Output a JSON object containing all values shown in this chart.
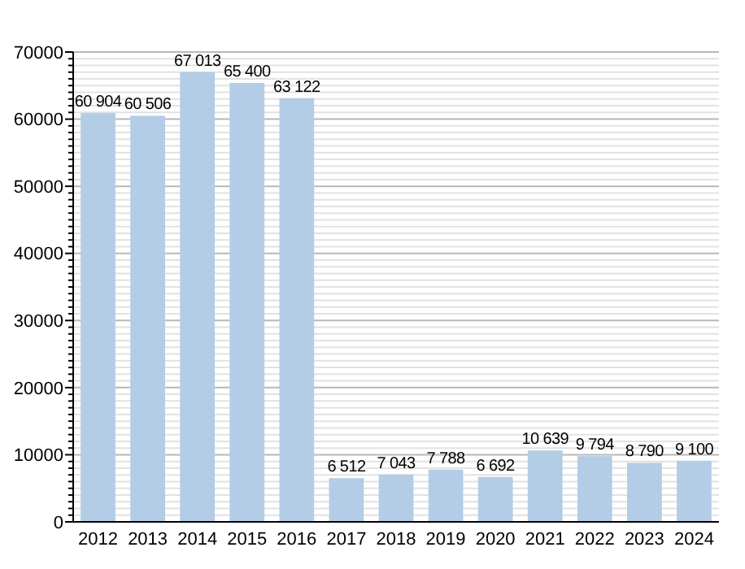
{
  "chart_data": {
    "type": "bar",
    "categories": [
      "2012",
      "2013",
      "2014",
      "2015",
      "2016",
      "2017",
      "2018",
      "2019",
      "2020",
      "2021",
      "2022",
      "2023",
      "2024"
    ],
    "values": [
      60904,
      60506,
      67013,
      65400,
      63122,
      6512,
      7043,
      7788,
      6692,
      10639,
      9794,
      8790,
      9100
    ],
    "value_labels": [
      "60 904",
      "60 506",
      "67 013",
      "65 400",
      "63 122",
      "6 512",
      "7 043",
      "7 788",
      "6 692",
      "10 639",
      "9 794",
      "8 790",
      "9 100"
    ],
    "color": "#b3cde6",
    "ylim": [
      0,
      70000
    ],
    "yticks": [
      0,
      {
        "value": 1000,
        "label": null
      },
      {
        "value": 2000,
        "label": null
      },
      {
        "value": 3000,
        "label": null
      },
      {
        "value": 4000,
        "label": null
      },
      {
        "value": 5000,
        "label": null
      },
      {
        "value": 6000,
        "label": null
      },
      {
        "value": 7000,
        "label": null
      },
      {
        "value": 8000,
        "label": null
      },
      {
        "value": 9000,
        "label": null
      },
      10000,
      {
        "value": 11000,
        "label": null
      },
      {
        "value": 12000,
        "label": null
      },
      {
        "value": 13000,
        "label": null
      },
      {
        "value": 14000,
        "label": null
      },
      {
        "value": 15000,
        "label": null
      },
      {
        "value": 16000,
        "label": null
      },
      {
        "value": 17000,
        "label": null
      },
      {
        "value": 18000,
        "label": null
      },
      {
        "value": 19000,
        "label": null
      },
      20000,
      {
        "value": 21000,
        "label": null
      },
      {
        "value": 22000,
        "label": null
      },
      {
        "value": 23000,
        "label": null
      },
      {
        "value": 24000,
        "label": null
      },
      {
        "value": 25000,
        "label": null
      },
      {
        "value": 26000,
        "label": null
      },
      {
        "value": 27000,
        "label": null
      },
      {
        "value": 28000,
        "label": null
      },
      {
        "value": 29000,
        "label": null
      },
      30000,
      {
        "value": 31000,
        "label": null
      },
      {
        "value": 32000,
        "label": null
      },
      {
        "value": 33000,
        "label": null
      },
      {
        "value": 34000,
        "label": null
      },
      {
        "value": 35000,
        "label": null
      },
      {
        "value": 36000,
        "label": null
      },
      {
        "value": 37000,
        "label": null
      },
      {
        "value": 38000,
        "label": null
      },
      {
        "value": 39000,
        "label": null
      },
      40000,
      {
        "value": 41000,
        "label": null
      },
      {
        "value": 42000,
        "label": null
      },
      {
        "value": 43000,
        "label": null
      },
      {
        "value": 44000,
        "label": null
      },
      {
        "value": 45000,
        "label": null
      },
      {
        "value": 46000,
        "label": null
      },
      {
        "value": 47000,
        "label": null
      },
      {
        "value": 48000,
        "label": null
      },
      {
        "value": 49000,
        "label": null
      },
      50000,
      {
        "value": 51000,
        "label": null
      },
      {
        "value": 52000,
        "label": null
      },
      {
        "value": 53000,
        "label": null
      },
      {
        "value": 54000,
        "label": null
      },
      {
        "value": 55000,
        "label": null
      },
      {
        "value": 56000,
        "label": null
      },
      {
        "value": 57000,
        "label": null
      },
      {
        "value": 58000,
        "label": null
      },
      {
        "value": 59000,
        "label": null
      },
      60000,
      {
        "value": 61000,
        "label": null
      },
      {
        "value": 62000,
        "label": null
      },
      {
        "value": 63000,
        "label": null
      },
      {
        "value": 64000,
        "label": null
      },
      {
        "value": 65000,
        "label": null
      },
      {
        "value": 66000,
        "label": null
      },
      {
        "value": 67000,
        "label": null
      },
      {
        "value": 68000,
        "label": null
      },
      {
        "value": 69000,
        "label": null
      },
      70000
    ],
    "grid": true
  }
}
